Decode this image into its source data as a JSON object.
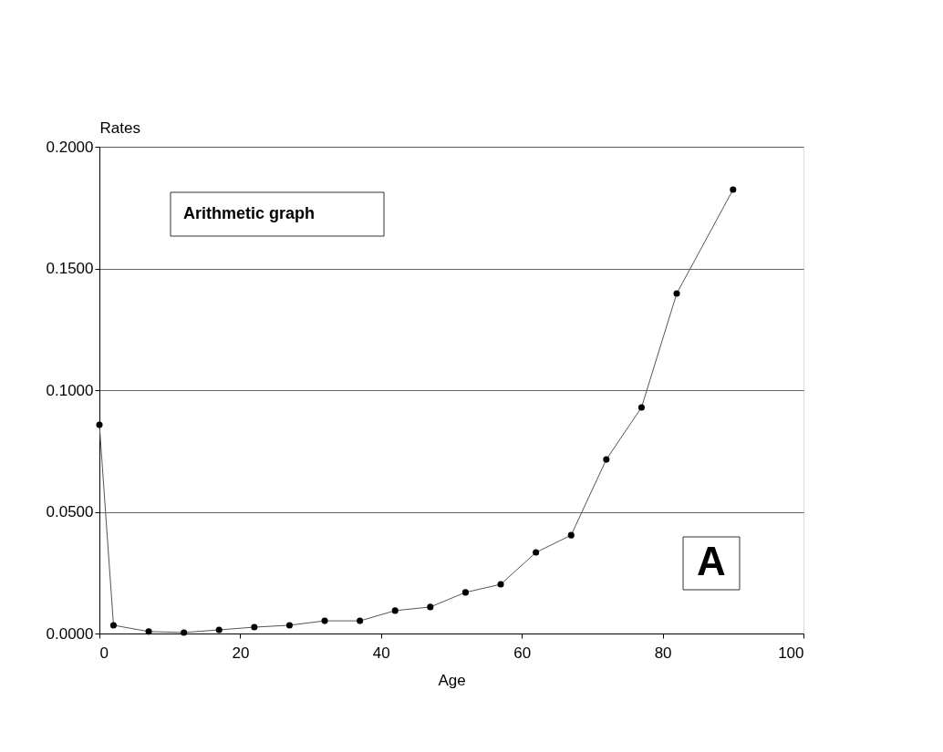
{
  "chart_data": {
    "type": "line",
    "xlabel": "Age",
    "ylabel": "Rates",
    "x": [
      0,
      2,
      7,
      12,
      17,
      22,
      27,
      32,
      37,
      42,
      47,
      52,
      57,
      62,
      67,
      72,
      77,
      82,
      90
    ],
    "series": [
      {
        "color": "#000000",
        "values": [
          0.0858,
          0.0034,
          0.0008,
          0.0004,
          0.0015,
          0.0026,
          0.0034,
          0.0052,
          0.0052,
          0.0094,
          0.0109,
          0.0169,
          0.0202,
          0.0333,
          0.0404,
          0.0715,
          0.0929,
          0.1397,
          0.1824
        ]
      }
    ],
    "xlim": [
      0,
      100
    ],
    "xticks": [
      0,
      20,
      40,
      60,
      80,
      100
    ],
    "ylim": [
      0,
      0.2
    ],
    "yticks": [
      {
        "value": 0,
        "label": "0.0000"
      },
      {
        "value": 0.05,
        "label": "0.0500"
      },
      {
        "value": 0.1,
        "label": "0.1000"
      },
      {
        "value": 0.15,
        "label": "0.1500"
      },
      {
        "value": 0.2,
        "label": "0.2000"
      }
    ],
    "grid": "y",
    "marker": "circle",
    "line_style": "solid",
    "annotations": [
      "Arithmetic graph",
      "A"
    ]
  }
}
